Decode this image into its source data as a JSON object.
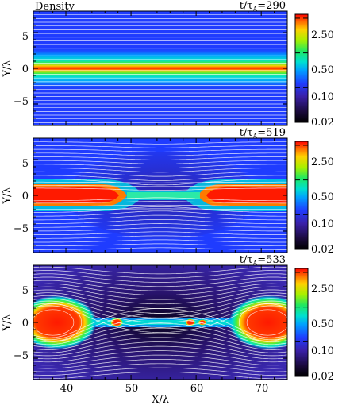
{
  "chart_data": [
    {
      "type": "heatmap",
      "title": "Density",
      "time_label": "t/τ",
      "time_sub": "A",
      "time_value": "=290",
      "ylabel": "Y/λ",
      "xlabel": "",
      "xlim": [
        35,
        74
      ],
      "ylim": [
        -8,
        8
      ],
      "xticks": [],
      "yticks": [
        "5",
        "0",
        "−5"
      ],
      "colorbar": {
        "scale": "log",
        "range": [
          0.02,
          3.0
        ],
        "ticks": [
          "2.50",
          "0.50",
          "0.10",
          "0.02"
        ]
      },
      "stage": "sheet",
      "field_lines": true
    },
    {
      "type": "heatmap",
      "title": "",
      "time_label": "t/τ",
      "time_sub": "A",
      "time_value": "=519",
      "ylabel": "Y/λ",
      "xlabel": "",
      "xlim": [
        35,
        74
      ],
      "ylim": [
        -8,
        8
      ],
      "xticks": [],
      "yticks": [
        "5",
        "0",
        "−5"
      ],
      "colorbar": {
        "scale": "log",
        "range": [
          0.02,
          3.0
        ],
        "ticks": [
          "2.50",
          "0.50",
          "0.10",
          "0.02"
        ]
      },
      "stage": "x-point",
      "field_lines": true
    },
    {
      "type": "heatmap",
      "title": "",
      "time_label": "t/τ",
      "time_sub": "A",
      "time_value": "=533",
      "ylabel": "Y/λ",
      "xlabel": "X/λ",
      "xlim": [
        35,
        74
      ],
      "ylim": [
        -8,
        8
      ],
      "xticks": [
        "40",
        "50",
        "60",
        "70"
      ],
      "yticks": [
        "5",
        "0",
        "−5"
      ],
      "colorbar": {
        "scale": "log",
        "range": [
          0.02,
          3.0
        ],
        "ticks": [
          "2.50",
          "0.50",
          "0.10",
          "0.02"
        ]
      },
      "stage": "plasmoids",
      "field_lines": true
    }
  ]
}
